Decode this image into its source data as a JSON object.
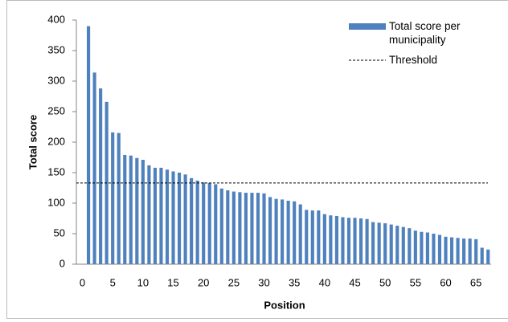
{
  "chart_data": {
    "type": "bar",
    "x_label": "Position",
    "y_label": "Total score",
    "x": [
      1,
      2,
      3,
      4,
      5,
      6,
      7,
      8,
      9,
      10,
      11,
      12,
      13,
      14,
      15,
      16,
      17,
      18,
      19,
      20,
      21,
      22,
      23,
      24,
      25,
      26,
      27,
      28,
      29,
      30,
      31,
      32,
      33,
      34,
      35,
      36,
      37,
      38,
      39,
      40,
      41,
      42,
      43,
      44,
      45,
      46,
      47,
      48,
      49,
      50,
      51,
      52,
      53,
      54,
      55,
      56,
      57,
      58,
      59,
      60,
      61,
      62,
      63,
      64,
      65,
      66,
      67
    ],
    "series": [
      {
        "name": "Total score per municipality",
        "color": "#4f81bd",
        "values": [
          390,
          314,
          288,
          266,
          216,
          215,
          179,
          178,
          174,
          171,
          162,
          158,
          158,
          155,
          152,
          150,
          147,
          141,
          137,
          134,
          133,
          131,
          124,
          121,
          119,
          118,
          117,
          117,
          117,
          116,
          110,
          107,
          106,
          104,
          103,
          98,
          89,
          88,
          88,
          82,
          80,
          79,
          77,
          76,
          76,
          75,
          74,
          69,
          68,
          67,
          65,
          63,
          61,
          59,
          55,
          53,
          52,
          50,
          48,
          45,
          44,
          43,
          42,
          42,
          41,
          27,
          24
        ]
      }
    ],
    "threshold": {
      "name": "Threshold",
      "value": 133,
      "color": "#000000"
    },
    "xlim": [
      -1,
      67.5
    ],
    "xticks": [
      0,
      5,
      10,
      15,
      20,
      25,
      30,
      35,
      40,
      45,
      50,
      55,
      60,
      65
    ],
    "ylim": [
      0,
      400
    ],
    "yticks": [
      0,
      50,
      100,
      150,
      200,
      250,
      300,
      350,
      400
    ],
    "legend": "top-right"
  }
}
